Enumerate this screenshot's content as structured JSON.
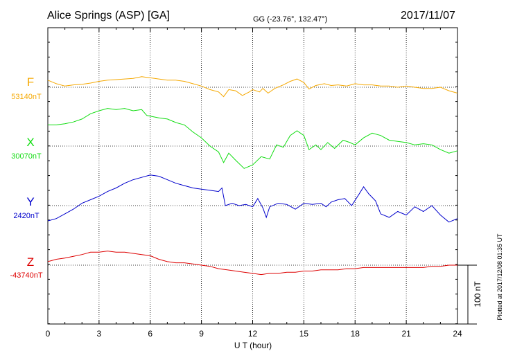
{
  "header": {
    "station": "Alice Springs (ASP)  [GA]",
    "coords": "GG (-23.76°, 132.47°)",
    "date": "2017/11/07"
  },
  "side_note": "Plotted at 2017/12/08 01:35 UT",
  "scale_label": "100 nT",
  "colors": {
    "F": "#f5a800",
    "X": "#11dd11",
    "Y": "#0000cc",
    "Z": "#dd0000"
  },
  "chart_data": {
    "type": "line",
    "title": "Alice Springs (ASP)  [GA]",
    "xlabel": "U T (hour)",
    "xlim": [
      0,
      24
    ],
    "x_ticks": [
      "0",
      "3",
      "6",
      "9",
      "12",
      "15",
      "18",
      "21",
      "24"
    ],
    "scale_bar_nT": 100,
    "grid": true,
    "series": [
      {
        "name": "F",
        "baseline_label": "53140nT",
        "points": [
          [
            0,
            12
          ],
          [
            0.5,
            6
          ],
          [
            1,
            2
          ],
          [
            1.5,
            4
          ],
          [
            2,
            5
          ],
          [
            2.5,
            7
          ],
          [
            3,
            10
          ],
          [
            3.5,
            12
          ],
          [
            4,
            13
          ],
          [
            4.5,
            14
          ],
          [
            5,
            15
          ],
          [
            5.5,
            18
          ],
          [
            6,
            16
          ],
          [
            6.5,
            14
          ],
          [
            7,
            12
          ],
          [
            7.5,
            12
          ],
          [
            8,
            10
          ],
          [
            8.5,
            6
          ],
          [
            9,
            2
          ],
          [
            9.5,
            -4
          ],
          [
            10,
            -8
          ],
          [
            10.3,
            -16
          ],
          [
            10.6,
            -4
          ],
          [
            11,
            -6
          ],
          [
            11.4,
            -14
          ],
          [
            11.8,
            -8
          ],
          [
            12,
            -4
          ],
          [
            12.4,
            -8
          ],
          [
            12.6,
            -2
          ],
          [
            12.9,
            -10
          ],
          [
            13.3,
            -2
          ],
          [
            13.8,
            4
          ],
          [
            14.2,
            10
          ],
          [
            14.6,
            14
          ],
          [
            15,
            8
          ],
          [
            15.3,
            -3
          ],
          [
            15.7,
            3
          ],
          [
            16.2,
            6
          ],
          [
            16.6,
            3
          ],
          [
            17,
            4
          ],
          [
            17.5,
            2
          ],
          [
            18,
            6
          ],
          [
            18.5,
            4
          ],
          [
            19,
            4
          ],
          [
            19.5,
            2
          ],
          [
            20,
            2
          ],
          [
            20.5,
            0
          ],
          [
            21,
            2
          ],
          [
            21.5,
            0
          ],
          [
            22,
            -2
          ],
          [
            22.5,
            -2
          ],
          [
            23,
            0
          ],
          [
            23.5,
            -6
          ],
          [
            24,
            -10
          ]
        ]
      },
      {
        "name": "X",
        "baseline_label": "30070nT",
        "points": [
          [
            0,
            36
          ],
          [
            0.5,
            36
          ],
          [
            1,
            38
          ],
          [
            1.5,
            41
          ],
          [
            2,
            46
          ],
          [
            2.5,
            55
          ],
          [
            3,
            60
          ],
          [
            3.5,
            64
          ],
          [
            4,
            62
          ],
          [
            4.5,
            64
          ],
          [
            5,
            60
          ],
          [
            5.5,
            62
          ],
          [
            5.8,
            52
          ],
          [
            6.5,
            48
          ],
          [
            7,
            46
          ],
          [
            7.5,
            40
          ],
          [
            8,
            36
          ],
          [
            8.5,
            24
          ],
          [
            9,
            14
          ],
          [
            9.5,
            0
          ],
          [
            10,
            -10
          ],
          [
            10.3,
            -28
          ],
          [
            10.6,
            -12
          ],
          [
            11,
            -24
          ],
          [
            11.5,
            -38
          ],
          [
            12,
            -32
          ],
          [
            12.5,
            -18
          ],
          [
            13,
            -22
          ],
          [
            13.4,
            2
          ],
          [
            13.8,
            -2
          ],
          [
            14.2,
            18
          ],
          [
            14.6,
            26
          ],
          [
            15,
            18
          ],
          [
            15.3,
            -6
          ],
          [
            15.7,
            2
          ],
          [
            16,
            -6
          ],
          [
            16.4,
            6
          ],
          [
            16.8,
            -4
          ],
          [
            17.3,
            10
          ],
          [
            17.7,
            6
          ],
          [
            18,
            2
          ],
          [
            18.5,
            14
          ],
          [
            19,
            22
          ],
          [
            19.5,
            18
          ],
          [
            20,
            10
          ],
          [
            20.5,
            8
          ],
          [
            21,
            6
          ],
          [
            21.5,
            2
          ],
          [
            22,
            4
          ],
          [
            22.5,
            2
          ],
          [
            23,
            -6
          ],
          [
            23.5,
            -12
          ],
          [
            24,
            -8
          ]
        ]
      },
      {
        "name": "Y",
        "baseline_label": "2420nT",
        "points": [
          [
            0,
            -26
          ],
          [
            0.5,
            -22
          ],
          [
            1,
            -14
          ],
          [
            1.5,
            -6
          ],
          [
            2,
            4
          ],
          [
            2.5,
            10
          ],
          [
            3,
            16
          ],
          [
            3.5,
            24
          ],
          [
            4,
            30
          ],
          [
            4.5,
            38
          ],
          [
            5,
            44
          ],
          [
            5.5,
            48
          ],
          [
            6,
            52
          ],
          [
            6.5,
            50
          ],
          [
            7,
            44
          ],
          [
            7.5,
            38
          ],
          [
            8,
            34
          ],
          [
            8.5,
            30
          ],
          [
            9,
            28
          ],
          [
            9.5,
            26
          ],
          [
            10,
            24
          ],
          [
            10.2,
            30
          ],
          [
            10.4,
            0
          ],
          [
            10.8,
            4
          ],
          [
            11.2,
            0
          ],
          [
            11.6,
            2
          ],
          [
            12,
            -2
          ],
          [
            12.3,
            12
          ],
          [
            12.6,
            -4
          ],
          [
            12.8,
            -20
          ],
          [
            13,
            -2
          ],
          [
            13.5,
            4
          ],
          [
            14,
            2
          ],
          [
            14.5,
            -6
          ],
          [
            15,
            4
          ],
          [
            15.5,
            2
          ],
          [
            16,
            4
          ],
          [
            16.3,
            -2
          ],
          [
            16.6,
            6
          ],
          [
            17,
            10
          ],
          [
            17.4,
            12
          ],
          [
            17.8,
            0
          ],
          [
            18.2,
            18
          ],
          [
            18.5,
            32
          ],
          [
            18.8,
            20
          ],
          [
            19.2,
            8
          ],
          [
            19.5,
            -14
          ],
          [
            20,
            -20
          ],
          [
            20.5,
            -10
          ],
          [
            21,
            -16
          ],
          [
            21.5,
            -2
          ],
          [
            22,
            -10
          ],
          [
            22.5,
            0
          ],
          [
            23,
            -16
          ],
          [
            23.5,
            -28
          ],
          [
            24,
            -22
          ]
        ]
      },
      {
        "name": "Z",
        "baseline_label": "-43740nT",
        "points": [
          [
            0,
            6
          ],
          [
            0.5,
            10
          ],
          [
            1,
            12
          ],
          [
            1.5,
            15
          ],
          [
            2,
            18
          ],
          [
            2.5,
            22
          ],
          [
            3,
            22
          ],
          [
            3.5,
            24
          ],
          [
            4,
            22
          ],
          [
            4.5,
            22
          ],
          [
            5,
            20
          ],
          [
            5.5,
            18
          ],
          [
            6,
            16
          ],
          [
            6.5,
            10
          ],
          [
            7,
            6
          ],
          [
            7.5,
            4
          ],
          [
            8,
            4
          ],
          [
            8.5,
            2
          ],
          [
            9,
            0
          ],
          [
            9.5,
            -2
          ],
          [
            10,
            -6
          ],
          [
            10.5,
            -8
          ],
          [
            11,
            -10
          ],
          [
            11.5,
            -12
          ],
          [
            12,
            -14
          ],
          [
            12.5,
            -16
          ],
          [
            13,
            -14
          ],
          [
            13.5,
            -14
          ],
          [
            14,
            -12
          ],
          [
            14.5,
            -12
          ],
          [
            15,
            -10
          ],
          [
            15.5,
            -10
          ],
          [
            16,
            -8
          ],
          [
            16.5,
            -8
          ],
          [
            17,
            -8
          ],
          [
            17.5,
            -6
          ],
          [
            18,
            -6
          ],
          [
            18.5,
            -4
          ],
          [
            19,
            -4
          ],
          [
            19.5,
            -4
          ],
          [
            20,
            -4
          ],
          [
            20.5,
            -4
          ],
          [
            21,
            -4
          ],
          [
            21.5,
            -4
          ],
          [
            22,
            -4
          ],
          [
            22.5,
            -2
          ],
          [
            23,
            -2
          ],
          [
            23.5,
            0
          ],
          [
            24,
            0
          ]
        ]
      }
    ]
  }
}
